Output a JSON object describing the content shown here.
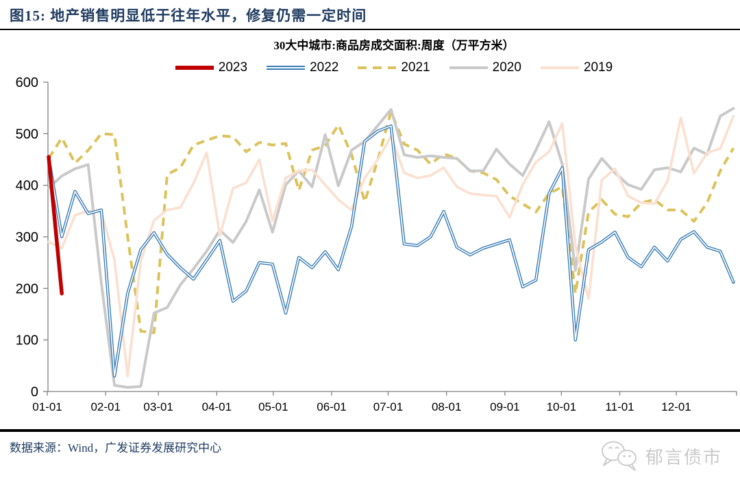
{
  "page": {
    "bg": "#ffffff"
  },
  "header": {
    "title": "图15:  地产销售明显低于往年水平，修复仍需一定时间",
    "title_color": "#1e3a5f"
  },
  "footer": {
    "source": "数据来源：Wind，广发证券发展研究中心",
    "brand": "郁言债市",
    "brand_icon": "wechat-bubbles-icon",
    "brand_color": "#c9c9c9"
  },
  "chart_data": {
    "type": "line",
    "title": "30大中城市:商品房成交面积:周度（万平方米）",
    "xlabel": "",
    "ylabel": "",
    "x_unit": "week",
    "x_tick_labels": [
      "01-01",
      "02-01",
      "03-01",
      "04-01",
      "05-01",
      "06-01",
      "07-01",
      "08-01",
      "09-01",
      "10-01",
      "11-01",
      "12-01"
    ],
    "y_axis": {
      "min": 0,
      "max": 600,
      "tick_step": 100,
      "ticks": [
        0,
        100,
        200,
        300,
        400,
        500,
        600
      ]
    },
    "grid": false,
    "legend_position": "top",
    "axis_color": "#808080",
    "series": [
      {
        "name": "2023",
        "color": "#c00000",
        "style": "solid",
        "width": 5.5,
        "values": [
          455,
          190
        ]
      },
      {
        "name": "2022",
        "color": "#3579b1",
        "style": "double",
        "width": 4.4,
        "values": [
          455,
          300,
          388,
          345,
          352,
          30,
          190,
          275,
          308,
          266,
          240,
          218,
          255,
          293,
          175,
          195,
          250,
          247,
          152,
          260,
          240,
          271,
          236,
          320,
          485,
          505,
          515,
          286,
          283,
          300,
          349,
          280,
          265,
          278,
          286,
          294,
          203,
          216,
          384,
          434,
          100,
          275,
          290,
          309,
          260,
          242,
          280,
          253,
          295,
          310,
          280,
          272,
          212
        ]
      },
      {
        "name": "2021",
        "color": "#dcc25c",
        "style": "dashed",
        "width": 4,
        "values": [
          452,
          492,
          443,
          468,
          500,
          498,
          300,
          117,
          114,
          421,
          434,
          478,
          487,
          496,
          494,
          465,
          483,
          478,
          481,
          390,
          468,
          477,
          517,
          460,
          368,
          450,
          543,
          480,
          468,
          441,
          461,
          452,
          428,
          424,
          411,
          379,
          364,
          348,
          384,
          397,
          190,
          348,
          372,
          344,
          339,
          366,
          372,
          352,
          352,
          330,
          366,
          428,
          472
        ]
      },
      {
        "name": "2020",
        "color": "#c9c9c9",
        "style": "solid",
        "width": 4,
        "values": [
          395,
          418,
          432,
          440,
          210,
          12,
          8,
          10,
          152,
          163,
          207,
          238,
          272,
          313,
          289,
          330,
          391,
          309,
          401,
          428,
          397,
          498,
          399,
          468,
          485,
          516,
          547,
          459,
          454,
          457,
          454,
          452,
          428,
          428,
          470,
          441,
          419,
          468,
          523,
          441,
          235,
          412,
          452,
          424,
          401,
          392,
          430,
          434,
          426,
          472,
          460,
          534,
          549
        ]
      },
      {
        "name": "2019",
        "color": "#fbe0d0",
        "style": "solid",
        "width": 3.6,
        "values": [
          290,
          278,
          342,
          350,
          348,
          255,
          30,
          253,
          332,
          352,
          357,
          404,
          463,
          302,
          394,
          405,
          450,
          331,
          414,
          428,
          430,
          401,
          372,
          352,
          414,
          450,
          495,
          424,
          414,
          419,
          434,
          397,
          384,
          381,
          379,
          338,
          401,
          445,
          465,
          520,
          282,
          180,
          410,
          432,
          379,
          366,
          364,
          408,
          531,
          423,
          463,
          471,
          534
        ]
      }
    ]
  }
}
